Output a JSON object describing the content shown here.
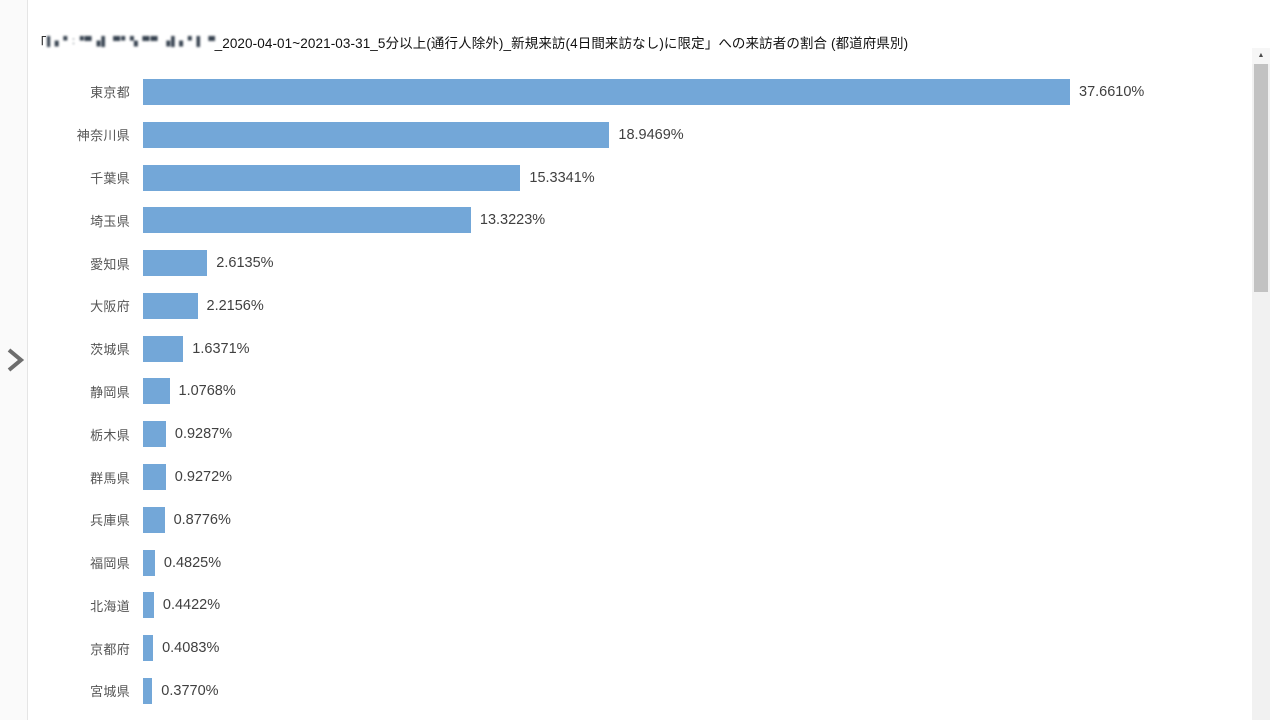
{
  "title": {
    "prefix": "「",
    "masked_segment": "▌▖▘:▝▀▗▌ ▀▘▚ ▀▀ ▗▌▖▘▌ ▀▘ ▐▌",
    "suffix": "_2020-04-01~2021-03-31_5分以上(通行人除外)_新規来訪(4日間来訪なし)に限定」への来訪者の割合 (都道府県別)"
  },
  "left_rail": {
    "expand_tooltip": "expand"
  },
  "scrollbar": {
    "up_arrow": "▲"
  },
  "chart_data": {
    "type": "bar",
    "orientation": "horizontal",
    "title": "「(マスク済み店舗名)_2020-04-01~2021-03-31_5分以上(通行人除外)_新規来訪(4日間来訪なし)に限定」への来訪者の割合 (都道府県別)",
    "xlabel": "",
    "ylabel": "",
    "units": "%",
    "grid": false,
    "legend": "none",
    "value_labels_shown": true,
    "xlim": [
      0,
      38
    ],
    "bar_color": "#73A7D8",
    "categories": [
      "東京都",
      "神奈川県",
      "千葉県",
      "埼玉県",
      "愛知県",
      "大阪府",
      "茨城県",
      "静岡県",
      "栃木県",
      "群馬県",
      "兵庫県",
      "福岡県",
      "北海道",
      "京都府",
      "宮城県"
    ],
    "values": [
      37.661,
      18.9469,
      15.3341,
      13.3223,
      2.6135,
      2.2156,
      1.6371,
      1.0768,
      0.9287,
      0.9272,
      0.8776,
      0.4825,
      0.4422,
      0.4083,
      0.377
    ],
    "value_labels": [
      "37.6610%",
      "18.9469%",
      "15.3341%",
      "13.3223%",
      "2.6135%",
      "2.2156%",
      "1.6371%",
      "1.0768%",
      "0.9287%",
      "0.9272%",
      "0.8776%",
      "0.4825%",
      "0.4422%",
      "0.4083%",
      "0.3770%"
    ]
  }
}
